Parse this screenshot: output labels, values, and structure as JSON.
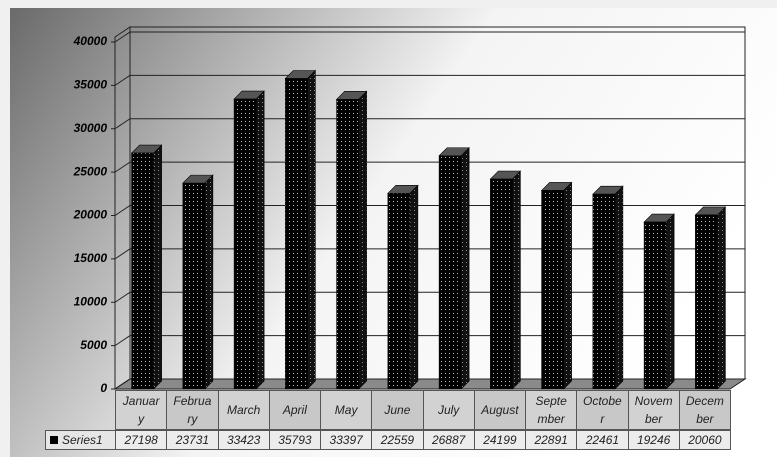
{
  "chart_data": {
    "type": "bar3d",
    "categories": [
      "January",
      "February",
      "March",
      "April",
      "May",
      "June",
      "July",
      "August",
      "September",
      "October",
      "November",
      "December"
    ],
    "series": [
      {
        "name": "Series1",
        "color": "#000000",
        "values": [
          27198,
          23731,
          33423,
          35793,
          33397,
          22559,
          26887,
          24199,
          22891,
          22461,
          19246,
          20060
        ]
      }
    ],
    "ylim": [
      0,
      40000
    ],
    "yticks": [
      0,
      5000,
      10000,
      15000,
      20000,
      25000,
      30000,
      35000,
      40000
    ],
    "grid": true,
    "data_table": true
  }
}
